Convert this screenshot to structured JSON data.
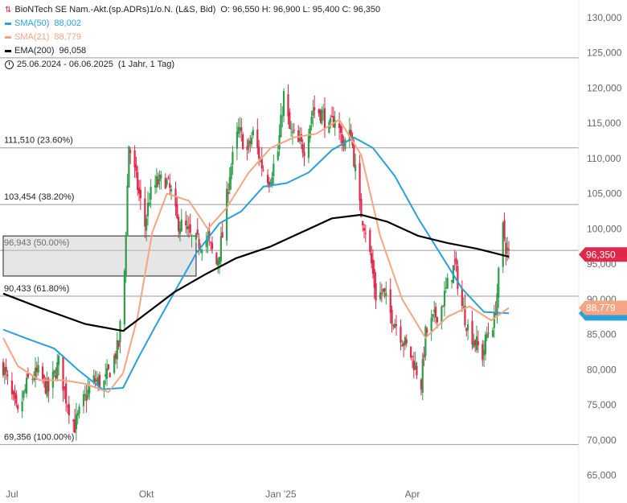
{
  "header": {
    "instrument": "BioNTech SE Nam.-Akt.(sp.ADRs)1/o.N. (L&S, Bid)",
    "ohlc": "O: 96,550  H: 96,900  L: 95,400  C: 96,350",
    "sma50_label": "SMA(50)",
    "sma50_value": "88,002",
    "sma21_label": "SMA(21)",
    "sma21_value": "88,779",
    "ema200_label": "EMA(200)",
    "ema200_value": "96,058",
    "range": "25.06.2024 - 06.06.2025",
    "range_detail": "(1 Jahr, 1 Tag)"
  },
  "colors": {
    "up": "#2e9d4a",
    "down": "#e0284b",
    "sma50": "#2aa0d8",
    "sma21": "#f5a582",
    "ema200": "#000000",
    "fib": "#888888"
  },
  "chart_data": {
    "type": "candlestick",
    "ylim": [
      62500,
      132500
    ],
    "y_ticks": [
      "65,000",
      "70,000",
      "75,000",
      "80,000",
      "85,000",
      "90,000",
      "95,000",
      "100,000",
      "105,000",
      "110,000",
      "115,000",
      "120,000",
      "125,000",
      "130,000"
    ],
    "x_ticks": [
      "Jul",
      "Okt",
      "Jan '25",
      "Apr"
    ],
    "date_range": [
      "2024-06-25",
      "2025-06-06"
    ],
    "last_price_label": "96,350",
    "sma21_last_label": "88,779",
    "horizontal_levels": [
      {
        "value": 124300,
        "label": ""
      },
      {
        "value": 111510,
        "label": "111,510 (23.60%)"
      },
      {
        "value": 103454,
        "label": "103,454 (38.20%)"
      },
      {
        "value": 96943,
        "label": "96,943 (50.00%)"
      },
      {
        "value": 90433,
        "label": "90,433 (61.80%)"
      },
      {
        "value": 69356,
        "label": "69,356 (100.00%)"
      }
    ],
    "zone": {
      "from": "2024-06-25",
      "to": "2024-11-04",
      "high": 99000,
      "low": 93300
    },
    "close_path": [
      [
        "2024-06-25",
        80500
      ],
      [
        "2024-07-01",
        76000
      ],
      [
        "2024-07-05",
        73500
      ],
      [
        "2024-07-12",
        78500
      ],
      [
        "2024-07-19",
        79500
      ],
      [
        "2024-07-26",
        77000
      ],
      [
        "2024-08-02",
        81000
      ],
      [
        "2024-08-07",
        76000
      ],
      [
        "2024-08-13",
        72000
      ],
      [
        "2024-08-19",
        75500
      ],
      [
        "2024-08-26",
        78500
      ],
      [
        "2024-09-02",
        78000
      ],
      [
        "2024-09-06",
        80000
      ],
      [
        "2024-09-12",
        83500
      ],
      [
        "2024-09-16",
        94000
      ],
      [
        "2024-09-19",
        112000
      ],
      [
        "2024-09-24",
        107000
      ],
      [
        "2024-09-30",
        100500
      ],
      [
        "2024-10-03",
        104500
      ],
      [
        "2024-10-08",
        106500
      ],
      [
        "2024-10-14",
        107000
      ],
      [
        "2024-10-18",
        105000
      ],
      [
        "2024-10-22",
        101000
      ],
      [
        "2024-10-28",
        100000
      ],
      [
        "2024-11-01",
        98500
      ],
      [
        "2024-11-06",
        98000
      ],
      [
        "2024-11-12",
        98500
      ],
      [
        "2024-11-18",
        95000
      ],
      [
        "2024-11-22",
        99000
      ],
      [
        "2024-11-27",
        108000
      ],
      [
        "2024-12-03",
        114000
      ],
      [
        "2024-12-09",
        111000
      ],
      [
        "2024-12-13",
        113500
      ],
      [
        "2024-12-19",
        109000
      ],
      [
        "2024-12-24",
        107000
      ],
      [
        "2024-12-30",
        111000
      ],
      [
        "2025-01-03",
        119000
      ],
      [
        "2025-01-07",
        114000
      ],
      [
        "2025-01-13",
        112000
      ],
      [
        "2025-01-17",
        111500
      ],
      [
        "2025-01-23",
        117000
      ],
      [
        "2025-01-29",
        116500
      ],
      [
        "2025-02-03",
        114000
      ],
      [
        "2025-02-07",
        116000
      ],
      [
        "2025-02-13",
        112000
      ],
      [
        "2025-02-18",
        113500
      ],
      [
        "2025-02-24",
        103000
      ],
      [
        "2025-02-28",
        100000
      ],
      [
        "2025-03-04",
        95000
      ],
      [
        "2025-03-07",
        90500
      ],
      [
        "2025-03-12",
        91000
      ],
      [
        "2025-03-17",
        88000
      ],
      [
        "2025-03-21",
        86500
      ],
      [
        "2025-03-26",
        84000
      ],
      [
        "2025-03-31",
        82000
      ],
      [
        "2025-04-03",
        80500
      ],
      [
        "2025-04-07",
        78000
      ],
      [
        "2025-04-10",
        85000
      ],
      [
        "2025-04-15",
        87000
      ],
      [
        "2025-04-21",
        89000
      ],
      [
        "2025-04-25",
        92000
      ],
      [
        "2025-04-30",
        95000
      ],
      [
        "2025-05-05",
        89000
      ],
      [
        "2025-05-09",
        86000
      ],
      [
        "2025-05-14",
        84000
      ],
      [
        "2025-05-19",
        82000
      ],
      [
        "2025-05-22",
        85000
      ],
      [
        "2025-05-27",
        87000
      ],
      [
        "2025-05-29",
        91000
      ],
      [
        "2025-06-02",
        100000
      ],
      [
        "2025-06-04",
        97500
      ],
      [
        "2025-06-06",
        96350
      ]
    ],
    "sma50": [
      [
        "2024-06-25",
        85700
      ],
      [
        "2024-07-10",
        84500
      ],
      [
        "2024-07-30",
        83000
      ],
      [
        "2024-08-15",
        80000
      ],
      [
        "2024-09-01",
        77200
      ],
      [
        "2024-09-15",
        77400
      ],
      [
        "2024-09-25",
        81500
      ],
      [
        "2024-10-08",
        86500
      ],
      [
        "2024-10-25",
        92800
      ],
      [
        "2024-11-04",
        96500
      ],
      [
        "2024-11-20",
        100800
      ],
      [
        "2024-12-05",
        102500
      ],
      [
        "2024-12-20",
        106000
      ],
      [
        "2025-01-05",
        106500
      ],
      [
        "2025-01-20",
        108000
      ],
      [
        "2025-02-05",
        111200
      ],
      [
        "2025-02-20",
        113000
      ],
      [
        "2025-03-05",
        111500
      ],
      [
        "2025-03-20",
        107500
      ],
      [
        "2025-04-05",
        101500
      ],
      [
        "2025-04-20",
        96500
      ],
      [
        "2025-05-05",
        91500
      ],
      [
        "2025-05-20",
        88200
      ],
      [
        "2025-06-06",
        88002
      ]
    ],
    "sma21": [
      [
        "2024-06-25",
        84500
      ],
      [
        "2024-07-05",
        80500
      ],
      [
        "2024-07-20",
        78500
      ],
      [
        "2024-08-05",
        78500
      ],
      [
        "2024-08-20",
        78000
      ],
      [
        "2024-09-05",
        76800
      ],
      [
        "2024-09-15",
        79500
      ],
      [
        "2024-09-25",
        87500
      ],
      [
        "2024-10-05",
        99500
      ],
      [
        "2024-10-15",
        105000
      ],
      [
        "2024-10-30",
        104000
      ],
      [
        "2024-11-12",
        100000
      ],
      [
        "2024-11-25",
        103000
      ],
      [
        "2024-12-10",
        108000
      ],
      [
        "2024-12-25",
        111500
      ],
      [
        "2025-01-10",
        113000
      ],
      [
        "2025-01-25",
        113500
      ],
      [
        "2025-02-10",
        115500
      ],
      [
        "2025-02-25",
        110500
      ],
      [
        "2025-03-10",
        99000
      ],
      [
        "2025-03-25",
        90000
      ],
      [
        "2025-04-10",
        84500
      ],
      [
        "2025-04-25",
        87500
      ],
      [
        "2025-05-10",
        89000
      ],
      [
        "2025-05-25",
        87000
      ],
      [
        "2025-06-06",
        88779
      ]
    ],
    "ema200": [
      [
        "2024-06-25",
        90800
      ],
      [
        "2024-07-20",
        88800
      ],
      [
        "2024-08-20",
        86500
      ],
      [
        "2024-09-15",
        85500
      ],
      [
        "2024-10-01",
        88000
      ],
      [
        "2024-10-20",
        91000
      ],
      [
        "2024-11-10",
        93500
      ],
      [
        "2024-12-01",
        95800
      ],
      [
        "2024-12-25",
        97500
      ],
      [
        "2025-01-15",
        99500
      ],
      [
        "2025-02-05",
        101500
      ],
      [
        "2025-02-25",
        102000
      ],
      [
        "2025-03-15",
        101000
      ],
      [
        "2025-04-05",
        99000
      ],
      [
        "2025-04-25",
        98000
      ],
      [
        "2025-05-15",
        97200
      ],
      [
        "2025-06-06",
        96058
      ]
    ],
    "grid": false,
    "legend_position": "top-left"
  }
}
